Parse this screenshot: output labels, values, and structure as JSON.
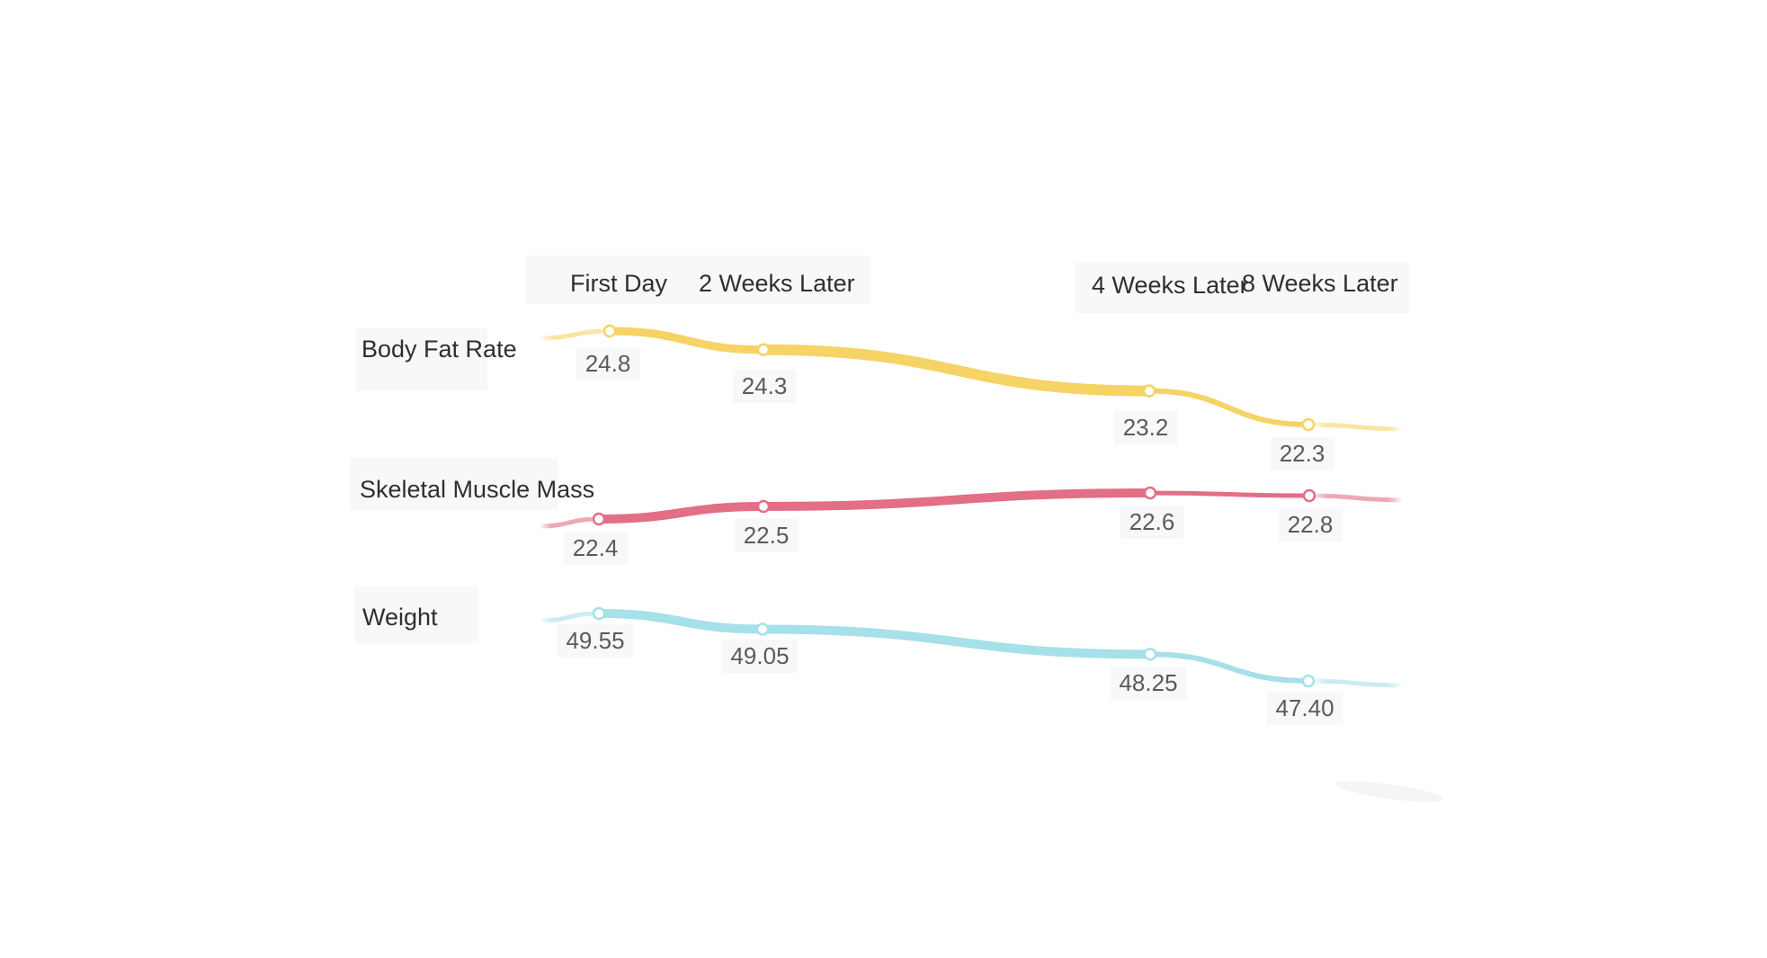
{
  "chart_data": {
    "type": "line",
    "categories": [
      "First Day",
      "2 Weeks Later",
      "4 Weeks Later",
      "8 Weeks Later"
    ],
    "series": [
      {
        "name": "Body Fat Rate",
        "values": [
          24.8,
          24.3,
          23.2,
          22.3
        ],
        "labels": [
          "24.8",
          "24.3",
          "23.2",
          "22.3"
        ],
        "color": "#f6d365"
      },
      {
        "name": "Skeletal Muscle Mass",
        "values": [
          22.4,
          22.5,
          22.6,
          22.8
        ],
        "labels": [
          "22.4",
          "22.5",
          "22.6",
          "22.8"
        ],
        "color": "#e26f86"
      },
      {
        "name": "Weight",
        "values": [
          49.55,
          49.05,
          48.25,
          47.4
        ],
        "labels": [
          "49.55",
          "49.05",
          "48.25",
          "47.40"
        ],
        "color": "#a6e0e8"
      }
    ],
    "grid": false,
    "legend": "row labels on left"
  }
}
